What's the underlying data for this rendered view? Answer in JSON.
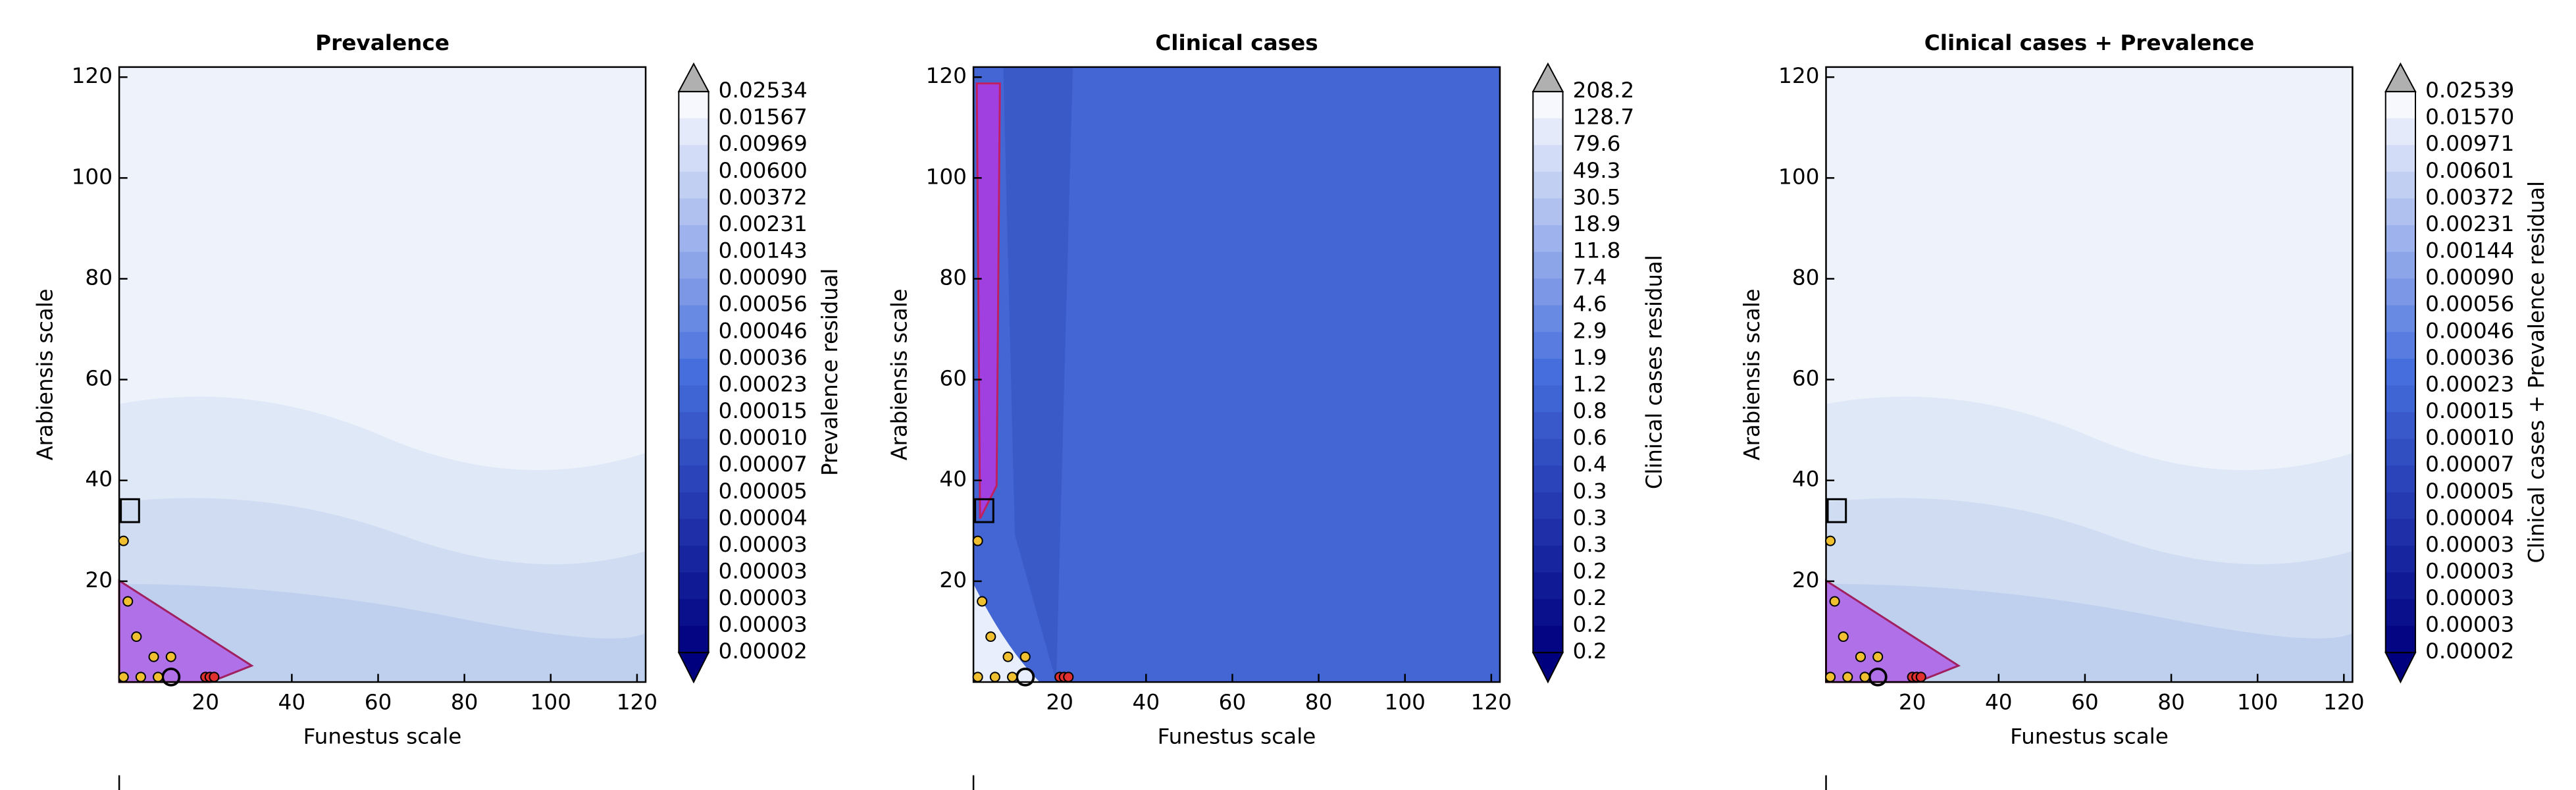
{
  "chart_data": [
    {
      "type": "contour",
      "title": "Prevalence",
      "x_label": "Funestus scale",
      "y_label": "Arabiensis scale",
      "xlim": [
        0,
        122
      ],
      "ylim": [
        0,
        122
      ],
      "xticks": [
        20,
        40,
        60,
        80,
        100,
        120
      ],
      "yticks": [
        20,
        40,
        60,
        80,
        100,
        120
      ],
      "background": "#edf2fb",
      "colorbar": {
        "label": "Prevalence residual",
        "levels": [
          "0.02534",
          "0.01567",
          "0.00969",
          "0.00600",
          "0.00372",
          "0.00231",
          "0.00143",
          "0.00090",
          "0.00056",
          "0.00046",
          "0.00036",
          "0.00023",
          "0.00015",
          "0.00010",
          "0.00007",
          "0.00005",
          "0.00004",
          "0.00003",
          "0.00003",
          "0.00003",
          "0.00003",
          "0.00002"
        ]
      },
      "points": [
        {
          "color": "#f0c030",
          "x": [
            1,
            1,
            2,
            4,
            5,
            8,
            9,
            12
          ],
          "y": [
            1,
            28,
            16,
            9,
            1,
            5,
            1,
            5
          ]
        },
        {
          "color": "#e03030",
          "x": [
            20,
            21,
            22
          ],
          "y": [
            1,
            1,
            1
          ]
        }
      ]
    },
    {
      "type": "contour",
      "title": "Clinical cases",
      "x_label": "Funestus scale",
      "y_label": "Arabiensis scale",
      "xlim": [
        0,
        122
      ],
      "ylim": [
        0,
        122
      ],
      "xticks": [
        20,
        40,
        60,
        80,
        100,
        120
      ],
      "yticks": [
        20,
        40,
        60,
        80,
        100,
        120
      ],
      "background": "#4466d4",
      "colorbar": {
        "label": "Clinical cases residual",
        "levels": [
          "208.2",
          "128.7",
          "79.6",
          "49.3",
          "30.5",
          "18.9",
          "11.8",
          "7.4",
          "4.6",
          "2.9",
          "1.9",
          "1.2",
          "0.8",
          "0.6",
          "0.4",
          "0.3",
          "0.3",
          "0.3",
          "0.2",
          "0.2",
          "0.2",
          "0.2"
        ]
      },
      "points": [
        {
          "color": "#f0c030",
          "x": [
            1,
            1,
            2,
            4,
            5,
            8,
            9,
            12
          ],
          "y": [
            1,
            28,
            16,
            9,
            1,
            5,
            1,
            5
          ]
        },
        {
          "color": "#e03030",
          "x": [
            20,
            21,
            22
          ],
          "y": [
            1,
            1,
            1
          ]
        }
      ]
    },
    {
      "type": "contour",
      "title": "Clinical cases + Prevalence",
      "x_label": "Funestus scale",
      "y_label": "Arabiensis scale",
      "xlim": [
        0,
        122
      ],
      "ylim": [
        0,
        122
      ],
      "xticks": [
        20,
        40,
        60,
        80,
        100,
        120
      ],
      "yticks": [
        20,
        40,
        60,
        80,
        100,
        120
      ],
      "background": "#edf2fb",
      "colorbar": {
        "label": "Clinical cases + Prevalence residual",
        "levels": [
          "0.02539",
          "0.01570",
          "0.00971",
          "0.00601",
          "0.00372",
          "0.00231",
          "0.00144",
          "0.00090",
          "0.00056",
          "0.00046",
          "0.00036",
          "0.00023",
          "0.00015",
          "0.00010",
          "0.00007",
          "0.00005",
          "0.00004",
          "0.00003",
          "0.00003",
          "0.00003",
          "0.00003",
          "0.00002"
        ]
      },
      "points": [
        {
          "color": "#f0c030",
          "x": [
            1,
            1,
            2,
            4,
            5,
            8,
            9,
            12
          ],
          "y": [
            1,
            28,
            16,
            9,
            1,
            5,
            1,
            5
          ]
        },
        {
          "color": "#e03030",
          "x": [
            20,
            21,
            22
          ],
          "y": [
            1,
            1,
            1
          ]
        }
      ]
    }
  ]
}
